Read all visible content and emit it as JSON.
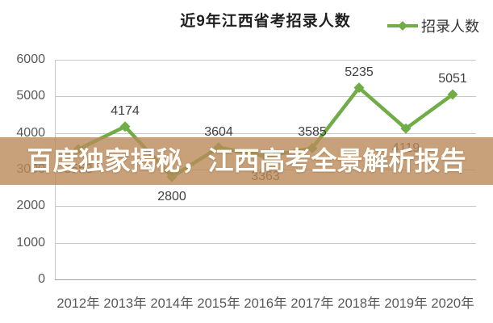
{
  "title": "近9年江西省考招录人数",
  "legend": {
    "label": "招录人数"
  },
  "banner": {
    "text": "百度独家揭秘，江西高考全景解析报告"
  },
  "colors": {
    "series": "#70AD47",
    "banner_bg": "rgba(186,138,90,0.8)",
    "banner_text": "#FFFEF9",
    "grid": "#C9C9C9",
    "axis_line": "#9E9E9E",
    "tick_text": "#595959",
    "data_label_text": "#3F3F3F"
  },
  "chart_data": {
    "type": "line",
    "title": "近9年江西省考招录人数",
    "categories": [
      "2012年",
      "2013年",
      "2014年",
      "2015年",
      "2016年",
      "2017年",
      "2018年",
      "2019年",
      "2020年"
    ],
    "series": [
      {
        "name": "招录人数",
        "values": [
          3553,
          4174,
          2800,
          3604,
          3363,
          3585,
          5235,
          4119,
          5051
        ],
        "color": "#70AD47",
        "marker": "diamond"
      }
    ],
    "data_labels": true,
    "label_placement": [
      "below",
      "above",
      "below",
      "above",
      "below",
      "above",
      "above",
      "below",
      "above"
    ],
    "xlabel": "",
    "ylabel": "",
    "ylim": [
      0,
      6000
    ],
    "yticks": [
      0,
      1000,
      2000,
      3000,
      4000,
      5000,
      6000
    ],
    "grid": true,
    "legend_position": "top-right"
  }
}
